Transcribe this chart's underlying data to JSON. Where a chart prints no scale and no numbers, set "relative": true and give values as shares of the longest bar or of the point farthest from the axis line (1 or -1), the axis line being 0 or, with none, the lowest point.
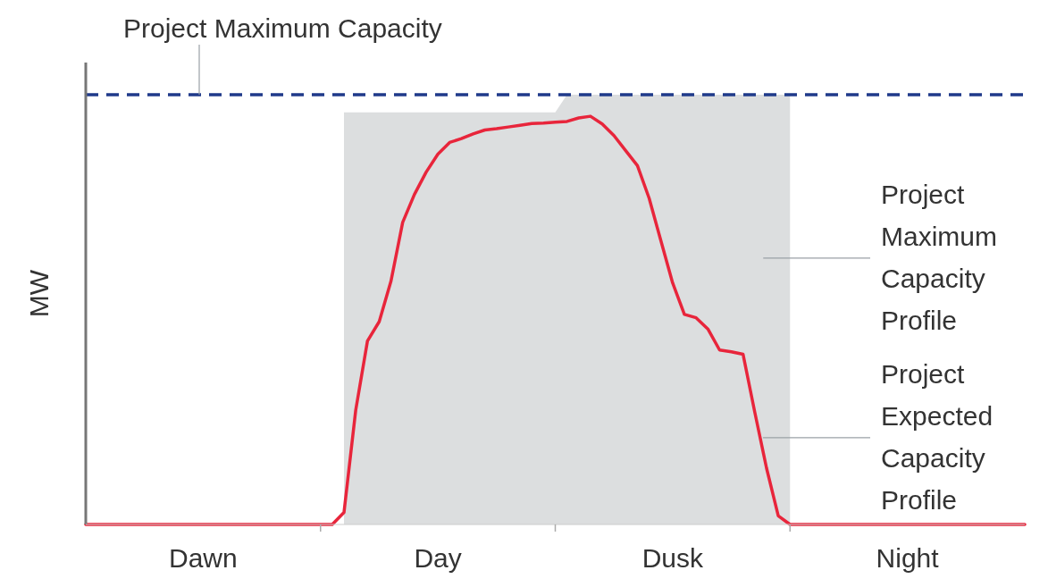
{
  "chart_data": {
    "type": "line",
    "relative": true,
    "ylabel": "MW",
    "categories": [
      null,
      null,
      null,
      null,
      null,
      null,
      null,
      null,
      null,
      null,
      "Dawn",
      null,
      null,
      null,
      null,
      null,
      null,
      null,
      null,
      null,
      null,
      null,
      null,
      null,
      null,
      null,
      null,
      null,
      null,
      null,
      "Day",
      null,
      null,
      null,
      null,
      null,
      null,
      null,
      null,
      null,
      null,
      null,
      null,
      null,
      null,
      null,
      null,
      null,
      null,
      null,
      "Dusk",
      null,
      null,
      null,
      null,
      null,
      null,
      null,
      null,
      null,
      null,
      null,
      null,
      null,
      null,
      null,
      null,
      null,
      null,
      null,
      "Night",
      null,
      null,
      null,
      null,
      null,
      null,
      null,
      null,
      null,
      null
    ],
    "series": [
      {
        "type": "area",
        "name": "Project Maximum Capacity Profile",
        "color": "#dcdedf",
        "values": [
          null,
          null,
          null,
          null,
          null,
          null,
          null,
          null,
          null,
          null,
          null,
          null,
          null,
          null,
          null,
          null,
          null,
          null,
          null,
          null,
          null,
          null,
          0.959,
          0.959,
          0.959,
          0.959,
          0.959,
          0.959,
          0.959,
          0.959,
          0.959,
          0.959,
          0.959,
          0.959,
          0.959,
          0.959,
          0.959,
          0.959,
          0.959,
          0.959,
          0.959,
          1,
          1,
          1,
          1,
          1,
          1,
          1,
          1,
          1,
          1,
          1,
          1,
          1,
          1,
          1,
          1,
          1,
          1,
          1,
          1,
          null,
          null,
          null,
          null,
          null,
          null,
          null,
          null,
          null,
          null,
          null,
          null,
          null,
          null,
          null,
          null,
          null,
          null,
          null,
          null
        ]
      },
      {
        "name": "Project Expected Capacity Profile",
        "color": "#e8253b",
        "values": [
          0,
          0,
          0,
          0,
          0,
          0,
          0,
          0,
          0,
          0,
          0,
          0,
          0,
          0,
          0,
          0,
          0,
          0,
          0,
          0,
          0,
          0,
          0.028,
          0.266,
          0.427,
          0.472,
          0.566,
          0.703,
          0.768,
          0.82,
          0.862,
          0.889,
          0.898,
          0.909,
          0.918,
          0.921,
          0.925,
          0.929,
          0.933,
          0.934,
          0.936,
          0.938,
          0.946,
          0.95,
          0.932,
          0.905,
          0.87,
          0.835,
          0.759,
          0.66,
          0.562,
          0.489,
          0.481,
          0.455,
          0.406,
          0.402,
          0.396,
          0.261,
          0.131,
          0.02,
          0,
          0,
          0,
          0,
          0,
          0,
          0,
          0,
          0,
          0,
          0,
          0,
          0,
          0,
          0,
          0,
          0,
          0,
          0,
          0,
          0
        ]
      }
    ],
    "ref_lines": [
      {
        "axis": "y",
        "value": 1,
        "label": "Project Maximum Capacity",
        "color": "#1f3a8a",
        "line_style": "dashed"
      }
    ]
  }
}
